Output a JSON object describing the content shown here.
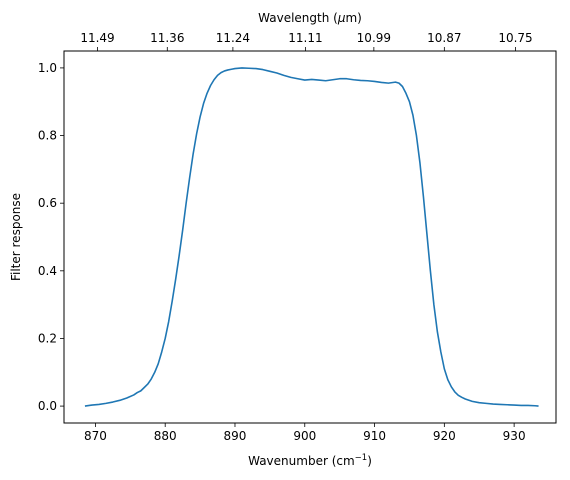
{
  "chart_data": {
    "type": "line",
    "title": "",
    "xlabel": "Wavenumber (cm",
    "xlabel_sup": "−1",
    "xlabel_close": ")",
    "ylabel": "Filter response",
    "top_xlabel": "Wavelength (",
    "top_xlabel_mu": "μ",
    "top_xlabel_unit": "m)",
    "xlim": [
      865.5,
      936
    ],
    "ylim": [
      -0.05,
      1.05
    ],
    "grid": false,
    "x_ticks": [
      870,
      880,
      890,
      900,
      910,
      920,
      930
    ],
    "y_ticks": [
      0.0,
      0.2,
      0.4,
      0.6,
      0.8,
      1.0
    ],
    "y_tick_labels": [
      "0.0",
      "0.2",
      "0.4",
      "0.6",
      "0.8",
      "1.0"
    ],
    "top_x_ticks": [
      {
        "label": "11.49",
        "wavenumber": 870.3
      },
      {
        "label": "11.36",
        "wavenumber": 880.3
      },
      {
        "label": "11.24",
        "wavenumber": 889.7
      },
      {
        "label": "11.11",
        "wavenumber": 900.1
      },
      {
        "label": "10.99",
        "wavenumber": 909.9
      },
      {
        "label": "10.87",
        "wavenumber": 920.0
      },
      {
        "label": "10.75",
        "wavenumber": 930.2
      }
    ],
    "line_color": "#1f77b4",
    "series": [
      {
        "x": [
          868.5,
          869.5,
          870.5,
          871.5,
          872.5,
          873.5,
          874.5,
          875.5,
          876.0,
          876.5,
          877.0,
          877.5,
          878.0,
          878.5,
          879.0,
          879.5,
          880.0,
          880.5,
          881.0,
          881.5,
          882.0,
          882.5,
          883.0,
          883.5,
          884.0,
          884.5,
          885.0,
          885.5,
          886.0,
          886.5,
          887.0,
          887.5,
          888.0,
          888.5,
          889.0,
          889.5,
          890.0,
          891.0,
          892.0,
          893.0,
          894.0,
          895.0,
          896.0,
          897.0,
          898.0,
          899.0,
          900.0,
          901.0,
          902.0,
          903.0,
          904.0,
          905.0,
          906.0,
          907.0,
          908.0,
          909.0,
          910.0,
          911.0,
          912.0,
          913.0,
          913.5,
          914.0,
          914.5,
          915.0,
          915.5,
          916.0,
          916.5,
          917.0,
          917.5,
          918.0,
          918.5,
          919.0,
          919.5,
          920.0,
          920.5,
          921.0,
          921.5,
          922.0,
          922.5,
          923.0,
          924.0,
          925.0,
          926.0,
          927.0,
          928.0,
          929.0,
          930.0,
          931.0,
          932.0,
          933.0,
          933.5
        ],
        "y": [
          0.0,
          0.003,
          0.005,
          0.008,
          0.012,
          0.017,
          0.024,
          0.033,
          0.04,
          0.045,
          0.055,
          0.065,
          0.08,
          0.1,
          0.125,
          0.16,
          0.2,
          0.25,
          0.31,
          0.375,
          0.445,
          0.52,
          0.6,
          0.675,
          0.745,
          0.805,
          0.855,
          0.895,
          0.925,
          0.948,
          0.965,
          0.978,
          0.986,
          0.991,
          0.994,
          0.996,
          0.998,
          1.0,
          0.999,
          0.998,
          0.995,
          0.99,
          0.985,
          0.978,
          0.972,
          0.968,
          0.964,
          0.966,
          0.964,
          0.962,
          0.965,
          0.968,
          0.968,
          0.965,
          0.963,
          0.962,
          0.96,
          0.957,
          0.955,
          0.958,
          0.955,
          0.945,
          0.925,
          0.9,
          0.86,
          0.8,
          0.72,
          0.62,
          0.51,
          0.4,
          0.3,
          0.22,
          0.16,
          0.11,
          0.078,
          0.057,
          0.042,
          0.032,
          0.026,
          0.021,
          0.014,
          0.01,
          0.008,
          0.006,
          0.005,
          0.004,
          0.003,
          0.002,
          0.002,
          0.001,
          0.0
        ]
      }
    ]
  }
}
